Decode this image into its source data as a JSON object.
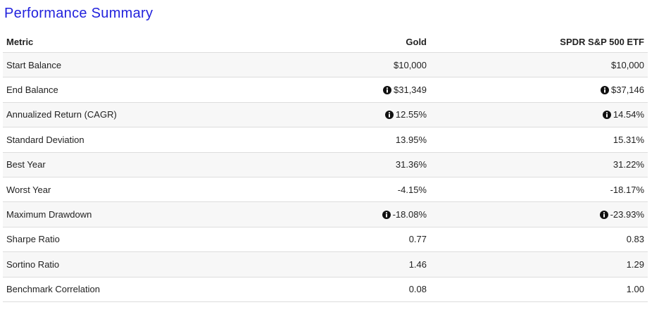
{
  "title": "Performance Summary",
  "table": {
    "header": [
      "Metric",
      "Gold",
      "SPDR S&P 500 ETF"
    ],
    "rows": [
      [
        "Start Balance",
        "$10,000",
        "$10,000"
      ],
      [
        "End Balance",
        "$31,349",
        "$37,146"
      ],
      [
        "Annualized Return (CAGR)",
        "12.55%",
        "14.54%"
      ],
      [
        "Standard Deviation",
        "13.95%",
        "15.31%"
      ],
      [
        "Best Year",
        "31.36%",
        "31.22%"
      ],
      [
        "Worst Year",
        "-4.15%",
        "-18.17%"
      ],
      [
        "Maximum Drawdown",
        "-18.08%",
        "-23.93%"
      ],
      [
        "Sharpe Ratio",
        "0.77",
        "0.83"
      ],
      [
        "Sortino Ratio",
        "1.46",
        "1.29"
      ],
      [
        "Benchmark Correlation",
        "0.08",
        "1.00"
      ]
    ]
  }
}
